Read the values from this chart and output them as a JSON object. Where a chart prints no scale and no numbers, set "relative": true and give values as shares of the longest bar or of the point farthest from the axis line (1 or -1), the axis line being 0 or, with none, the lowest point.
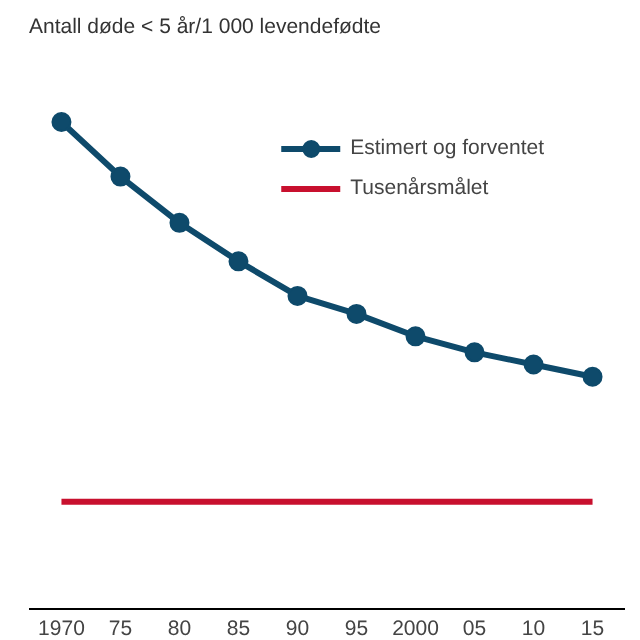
{
  "chart_data": {
    "type": "line",
    "relative": true,
    "ylabel": "Antall døde < 5 år/1 000 levendefødte",
    "categories": [
      "1970",
      "75",
      "80",
      "85",
      "90",
      "95",
      "2000",
      "05",
      "10",
      "15"
    ],
    "series": [
      {
        "name": "Estimert og forventet",
        "color": "#0e4a6b",
        "marker": "circle",
        "values": [
          1,
          0.888,
          0.793,
          0.714,
          0.643,
          0.606,
          0.56,
          0.527,
          0.502,
          0.477
        ]
      },
      {
        "name": "Tusenårsmålet",
        "color": "#c8102e",
        "marker": "none",
        "values": [
          0.22,
          0.22,
          0.22,
          0.22,
          0.22,
          0.22,
          0.22,
          0.22,
          0.22,
          0.22
        ]
      }
    ],
    "legend": "top right",
    "grid": false
  }
}
